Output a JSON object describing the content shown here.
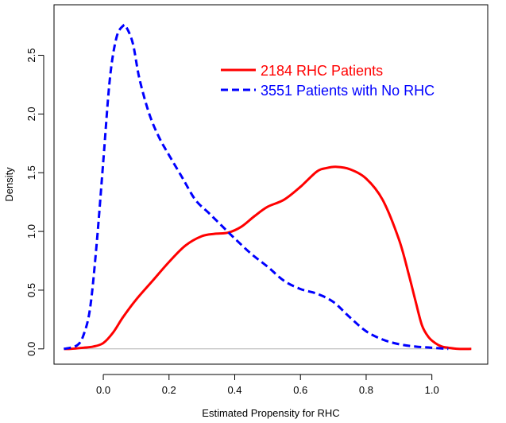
{
  "chart_data": {
    "type": "line",
    "title": "",
    "xlabel": "Estimated Propensity for RHC",
    "ylabel": "Density",
    "xlim": [
      -0.15,
      1.17
    ],
    "ylim": [
      -0.13,
      2.93
    ],
    "xticks": [
      0.0,
      0.2,
      0.4,
      0.6,
      0.8,
      1.0
    ],
    "xtick_labels": [
      "0.0",
      "0.2",
      "0.4",
      "0.6",
      "0.8",
      "1.0"
    ],
    "yticks": [
      0.0,
      0.5,
      1.0,
      1.5,
      2.0,
      2.5
    ],
    "ytick_labels": [
      "0.0",
      "0.5",
      "1.0",
      "1.5",
      "2.0",
      "2.5"
    ],
    "grid": false,
    "baseline": 0.0,
    "legend_position": "top-right",
    "series": [
      {
        "name": "2184 RHC Patients",
        "color": "#ff0000",
        "style": "solid",
        "x": [
          -0.12,
          -0.1,
          -0.06,
          -0.03,
          0.0,
          0.03,
          0.06,
          0.1,
          0.15,
          0.2,
          0.25,
          0.3,
          0.34,
          0.38,
          0.42,
          0.46,
          0.5,
          0.55,
          0.6,
          0.65,
          0.68,
          0.71,
          0.75,
          0.8,
          0.85,
          0.9,
          0.93,
          0.95,
          0.97,
          0.99,
          1.01,
          1.03,
          1.05,
          1.08,
          1.12
        ],
        "y": [
          0.0,
          0.0,
          0.01,
          0.02,
          0.05,
          0.14,
          0.27,
          0.42,
          0.58,
          0.74,
          0.88,
          0.96,
          0.98,
          0.99,
          1.04,
          1.13,
          1.21,
          1.27,
          1.38,
          1.51,
          1.54,
          1.55,
          1.53,
          1.45,
          1.27,
          0.93,
          0.63,
          0.41,
          0.2,
          0.1,
          0.05,
          0.02,
          0.01,
          0.0,
          0.0
        ]
      },
      {
        "name": "3551 Patients with No RHC",
        "color": "#0000ff",
        "style": "dashed",
        "x": [
          -0.12,
          -0.08,
          -0.06,
          -0.04,
          -0.02,
          0.0,
          0.02,
          0.04,
          0.06,
          0.07,
          0.09,
          0.11,
          0.14,
          0.17,
          0.2,
          0.24,
          0.28,
          0.32,
          0.36,
          0.4,
          0.45,
          0.5,
          0.55,
          0.6,
          0.65,
          0.7,
          0.75,
          0.8,
          0.85,
          0.9,
          0.95,
          1.0,
          1.05
        ],
        "y": [
          0.0,
          0.03,
          0.12,
          0.35,
          0.9,
          1.6,
          2.3,
          2.65,
          2.75,
          2.74,
          2.6,
          2.3,
          2.0,
          1.8,
          1.65,
          1.46,
          1.27,
          1.16,
          1.05,
          0.94,
          0.81,
          0.7,
          0.58,
          0.51,
          0.47,
          0.4,
          0.27,
          0.15,
          0.08,
          0.04,
          0.02,
          0.01,
          0.0
        ]
      }
    ]
  }
}
